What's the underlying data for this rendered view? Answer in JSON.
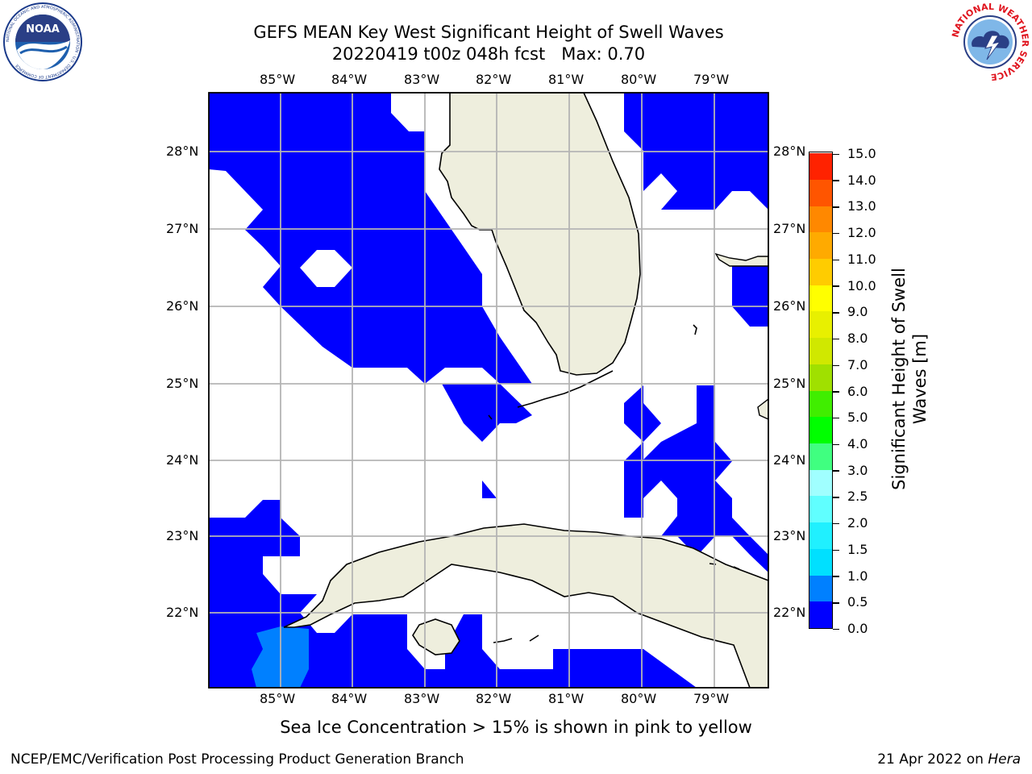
{
  "title": {
    "line1": "GEFS MEAN Key West Significant Height of Swell Waves",
    "line2": "20220419 t00z 048h fcst   Max: 0.70"
  },
  "logos": {
    "noaa_text": "NOAA",
    "noaa_ring_text": "NATIONAL OCEANIC AND ATMOSPHERIC ADMINISTRATION · U.S. DEPARTMENT OF COMMERCE",
    "nws_ring_text": "NATIONAL WEATHER SERVICE"
  },
  "map": {
    "lon_labels": [
      "85°W",
      "84°W",
      "83°W",
      "82°W",
      "81°W",
      "80°W",
      "79°W"
    ],
    "lat_labels": [
      "28°N",
      "27°N",
      "26°N",
      "25°N",
      "24°N",
      "23°N",
      "22°N"
    ],
    "colors": {
      "water_low": "#0000ff",
      "water_mid": "#0080ff",
      "land": "#eeeedd",
      "grid": "#b4b4b4",
      "coast": "#000000"
    }
  },
  "colorbar": {
    "label_line1": "Significant Height of Swell",
    "label_line2": "Waves [m]",
    "ticks": [
      "0.0",
      "0.5",
      "1.0",
      "1.5",
      "2.0",
      "2.5",
      "3.0",
      "4.0",
      "5.0",
      "6.0",
      "7.0",
      "8.0",
      "9.0",
      "10.0",
      "11.0",
      "12.0",
      "13.0",
      "14.0",
      "15.0"
    ],
    "colors": [
      "#0000ff",
      "#0080ff",
      "#00e0ff",
      "#20f0ff",
      "#60ffff",
      "#a0ffff",
      "#40ff80",
      "#00ff00",
      "#40ee00",
      "#a0e000",
      "#d0e800",
      "#e8f000",
      "#ffff00",
      "#ffcc00",
      "#ffaa00",
      "#ff8800",
      "#ff5500",
      "#ff2200",
      "#ff0000"
    ]
  },
  "note": "Sea Ice Concentration > 15% is shown in pink to yellow",
  "footer": {
    "left": "NCEP/EMC/Verification Post Processing Product Generation Branch",
    "right_prefix": "21 Apr 2022 on ",
    "right_host": "Hera"
  }
}
